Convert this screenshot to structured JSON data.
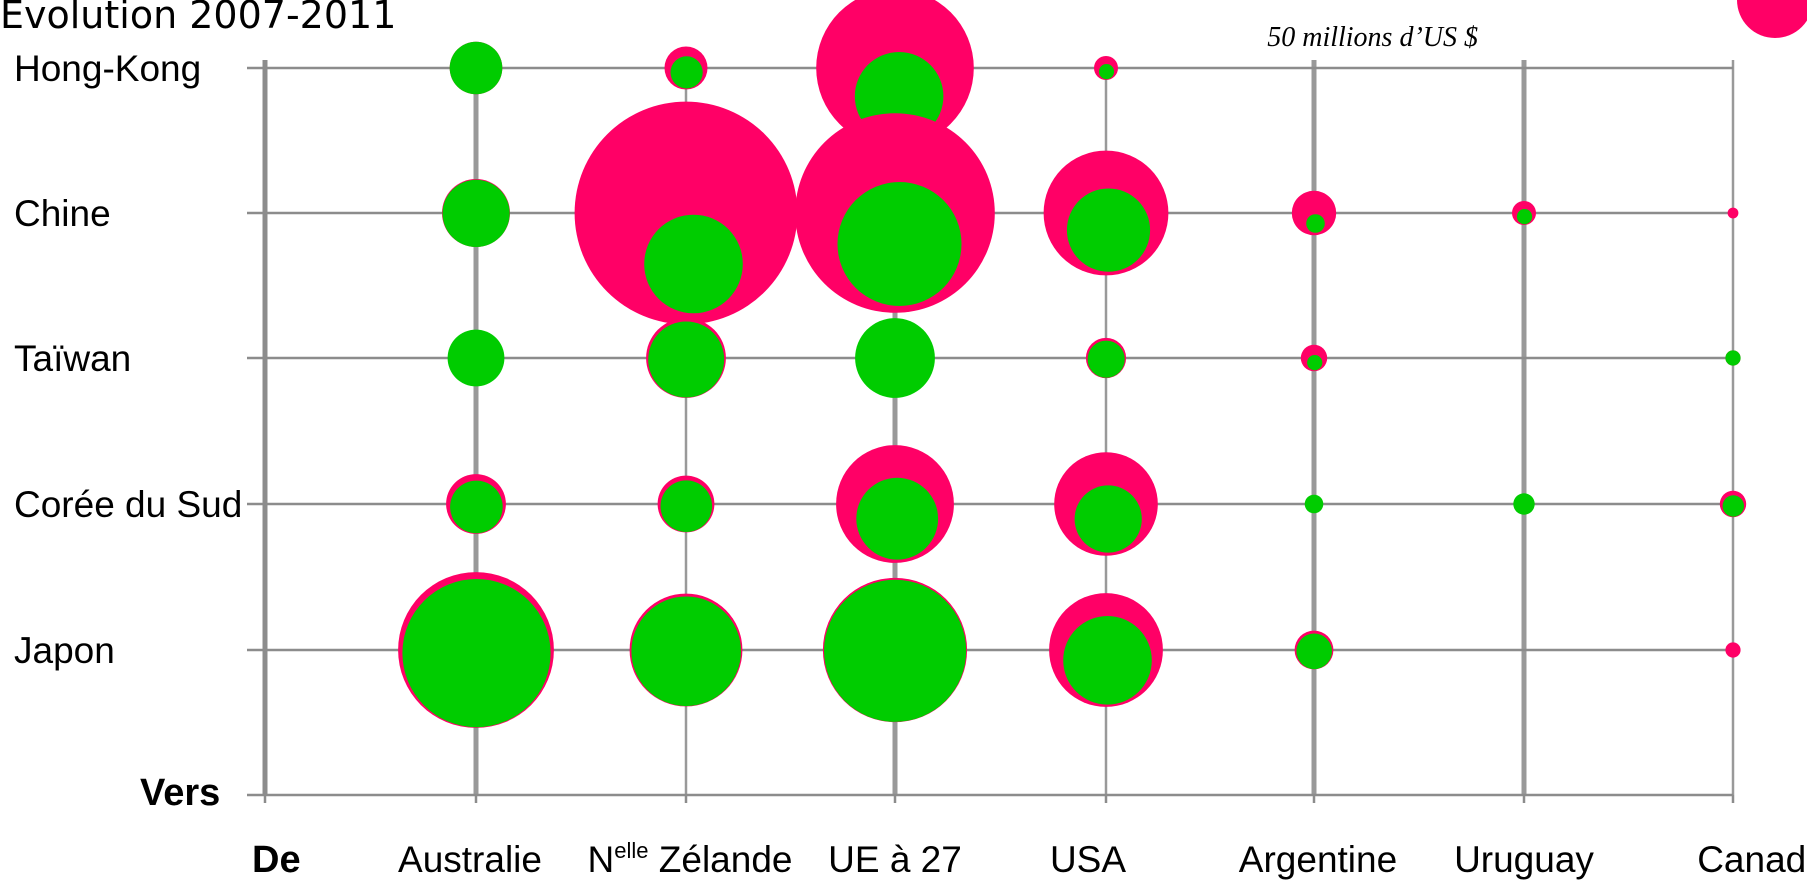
{
  "chart_data": {
    "type": "bubble-matrix",
    "title": "Évolution 2007-2011",
    "row_axis_label": "Vers",
    "column_axis_label": "De",
    "columns": [
      "Australie",
      "Zélande",
      "UE à 27",
      "USA",
      "Argentine",
      "Uruguay",
      "Canada"
    ],
    "column_prefix": {
      "index": 1,
      "base": "N",
      "superscript": "elle"
    },
    "rows": [
      "Hong-Kong",
      "Chine",
      "Taïwan",
      "Corée du Sud",
      "Japon"
    ],
    "legend": {
      "label": "50 millions d’US $",
      "value": 50,
      "color": "#ff0066"
    },
    "series_colors": {
      "pink": "#ff0066",
      "green": "#00cc00"
    },
    "size_unit_note": "values in millions of US $",
    "values_pink": [
      [
        24,
        16,
        215,
        5,
        0,
        0,
        0
      ],
      [
        40,
        430,
        345,
        135,
        17,
        5,
        1
      ],
      [
        20,
        55,
        40,
        14,
        6,
        0,
        2
      ],
      [
        31,
        28,
        120,
        93,
        1,
        3,
        6
      ],
      [
        210,
        110,
        180,
        112,
        13,
        0,
        2
      ]
    ],
    "values_green": [
      [
        24,
        9,
        68,
        2,
        0,
        0,
        0
      ],
      [
        39,
        84,
        133,
        60,
        3,
        2,
        0
      ],
      [
        28,
        50,
        55,
        12,
        2,
        0,
        2
      ],
      [
        24,
        23,
        58,
        39,
        3,
        4,
        4
      ],
      [
        190,
        104,
        175,
        68,
        11,
        0,
        0
      ]
    ]
  }
}
